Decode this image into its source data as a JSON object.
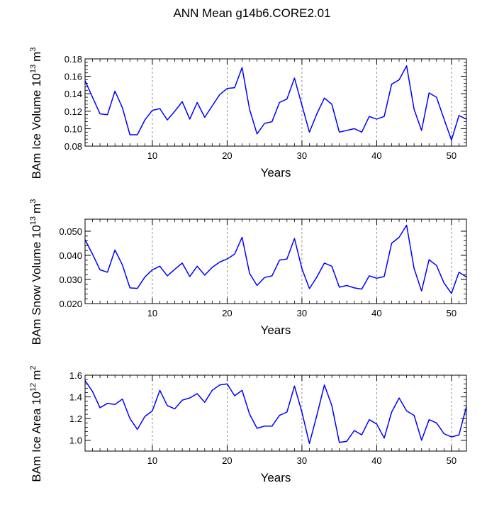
{
  "title": "ANN Mean g14b6.CORE2.01",
  "colors": {
    "line": "#0000ff",
    "axis": "#000000",
    "grid": "#777777"
  },
  "chart_data": [
    {
      "type": "line",
      "ylabel_main": "BAm Ice Volume 10",
      "ylabel_exp": "13",
      "ylabel_unit": "m",
      "ylabel_unit_exp": "3",
      "xlabel": "Years",
      "xlim": [
        1,
        52
      ],
      "ylim": [
        0.08,
        0.18
      ],
      "xticks": [
        10,
        20,
        30,
        40,
        50
      ],
      "xtick_labels": [
        "10",
        "20",
        "30",
        "40",
        "50"
      ],
      "yticks": [
        0.08,
        0.1,
        0.12,
        0.14,
        0.16,
        0.18
      ],
      "ytick_labels": [
        "0.08",
        "0.10",
        "0.12",
        "0.14",
        "0.16",
        "0.18"
      ],
      "ydecimals": 3,
      "x": [
        1,
        2,
        3,
        4,
        5,
        6,
        7,
        8,
        9,
        10,
        11,
        12,
        13,
        14,
        15,
        16,
        17,
        18,
        19,
        20,
        21,
        22,
        23,
        24,
        25,
        26,
        27,
        28,
        29,
        30,
        31,
        32,
        33,
        34,
        35,
        36,
        37,
        38,
        39,
        40,
        41,
        42,
        43,
        44,
        45,
        46,
        47,
        48,
        49,
        50,
        51,
        52
      ],
      "values": [
        0.155,
        0.136,
        0.117,
        0.116,
        0.143,
        0.124,
        0.093,
        0.093,
        0.11,
        0.121,
        0.123,
        0.11,
        0.12,
        0.131,
        0.111,
        0.13,
        0.113,
        0.126,
        0.139,
        0.146,
        0.147,
        0.17,
        0.122,
        0.094,
        0.106,
        0.108,
        0.13,
        0.134,
        0.158,
        0.127,
        0.096,
        0.117,
        0.135,
        0.128,
        0.096,
        0.098,
        0.1,
        0.096,
        0.114,
        0.111,
        0.114,
        0.151,
        0.156,
        0.172,
        0.122,
        0.098,
        0.141,
        0.136,
        0.111,
        0.087,
        0.115,
        0.111
      ]
    },
    {
      "type": "line",
      "ylabel_main": "BAm Snow Volume 10",
      "ylabel_exp": "13",
      "ylabel_unit": "m",
      "ylabel_unit_exp": "3",
      "xlabel": "Years",
      "xlim": [
        1,
        52
      ],
      "ylim": [
        0.02,
        0.055
      ],
      "xticks": [
        10,
        20,
        30,
        40,
        50
      ],
      "xtick_labels": [
        "10",
        "20",
        "30",
        "40",
        "50"
      ],
      "yticks": [
        0.02,
        0.03,
        0.04,
        0.05
      ],
      "ytick_labels": [
        "0.020",
        "0.030",
        "0.040",
        "0.050"
      ],
      "ydecimals": 4,
      "x": [
        1,
        2,
        3,
        4,
        5,
        6,
        7,
        8,
        9,
        10,
        11,
        12,
        13,
        14,
        15,
        16,
        17,
        18,
        19,
        20,
        21,
        22,
        23,
        24,
        25,
        26,
        27,
        28,
        29,
        30,
        31,
        32,
        33,
        34,
        35,
        36,
        37,
        38,
        39,
        40,
        41,
        42,
        43,
        44,
        45,
        46,
        47,
        48,
        49,
        50,
        51,
        52
      ],
      "values": [
        0.0465,
        0.0405,
        0.034,
        0.033,
        0.0422,
        0.036,
        0.0265,
        0.0263,
        0.031,
        0.034,
        0.0355,
        0.0315,
        0.0342,
        0.0368,
        0.0312,
        0.0355,
        0.0318,
        0.035,
        0.0372,
        0.0385,
        0.0405,
        0.0475,
        0.0325,
        0.0275,
        0.0308,
        0.0315,
        0.038,
        0.0385,
        0.047,
        0.0345,
        0.0262,
        0.031,
        0.0368,
        0.0355,
        0.0268,
        0.0275,
        0.0265,
        0.026,
        0.0315,
        0.0305,
        0.0312,
        0.045,
        0.0475,
        0.0525,
        0.0345,
        0.0252,
        0.0382,
        0.0358,
        0.0285,
        0.0242,
        0.033,
        0.031
      ]
    },
    {
      "type": "line",
      "ylabel_main": "BAm Ice Area 10",
      "ylabel_exp": "12",
      "ylabel_unit": "m",
      "ylabel_unit_exp": "2",
      "xlabel": "Years",
      "xlim": [
        1,
        52
      ],
      "ylim": [
        0.9,
        1.6
      ],
      "xticks": [
        10,
        20,
        30,
        40,
        50
      ],
      "xtick_labels": [
        "10",
        "20",
        "30",
        "40",
        "50"
      ],
      "yticks": [
        1.0,
        1.2,
        1.4,
        1.6
      ],
      "ytick_labels": [
        "1.0",
        "1.2",
        "1.4",
        "1.6"
      ],
      "ydecimals": 2,
      "x": [
        1,
        2,
        3,
        4,
        5,
        6,
        7,
        8,
        9,
        10,
        11,
        12,
        13,
        14,
        15,
        16,
        17,
        18,
        19,
        20,
        21,
        22,
        23,
        24,
        25,
        26,
        27,
        28,
        29,
        30,
        31,
        32,
        33,
        34,
        35,
        36,
        37,
        38,
        39,
        40,
        41,
        42,
        43,
        44,
        45,
        46,
        47,
        48,
        49,
        50,
        51,
        52
      ],
      "values": [
        1.55,
        1.45,
        1.3,
        1.34,
        1.33,
        1.38,
        1.2,
        1.1,
        1.22,
        1.27,
        1.46,
        1.32,
        1.29,
        1.37,
        1.39,
        1.43,
        1.35,
        1.46,
        1.51,
        1.52,
        1.41,
        1.46,
        1.24,
        1.11,
        1.13,
        1.13,
        1.23,
        1.26,
        1.5,
        1.26,
        0.97,
        1.23,
        1.51,
        1.32,
        0.98,
        0.99,
        1.09,
        1.05,
        1.19,
        1.15,
        1.02,
        1.26,
        1.39,
        1.27,
        1.23,
        1.0,
        1.19,
        1.16,
        1.06,
        1.03,
        1.05,
        1.31
      ]
    }
  ]
}
